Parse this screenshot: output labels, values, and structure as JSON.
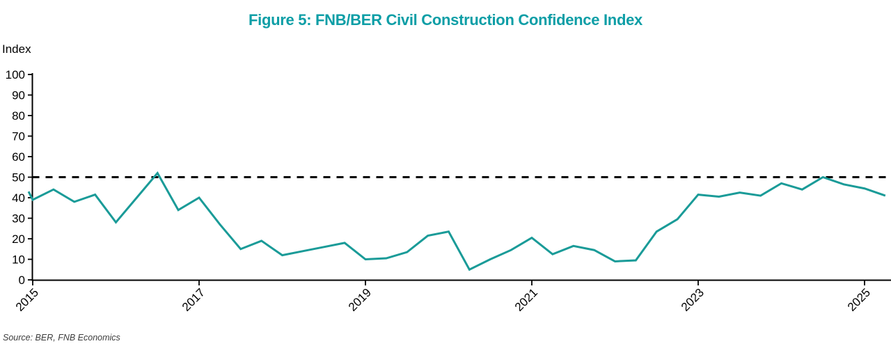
{
  "title": {
    "text": "Figure 5: FNB/BER Civil Construction Confidence Index"
  },
  "y_axis_unit_label": "Index",
  "source_note": "Source: BER, FNB Economics",
  "colors": {
    "title": "#0d9ea6",
    "series_line": "#1a9b98",
    "reference_line": "#000000",
    "axis": "#000000",
    "source_text": "#3d3d3d"
  },
  "chart_data": {
    "type": "line",
    "title": "Figure 5: FNB/BER Civil Construction Confidence Index",
    "ylabel": "Index",
    "ylim": [
      0,
      100
    ],
    "y_ticks": [
      0,
      10,
      20,
      30,
      40,
      50,
      60,
      70,
      80,
      90,
      100
    ],
    "x_tick_labels": [
      "2015",
      "2017",
      "2019",
      "2021",
      "2023",
      "2025"
    ],
    "x_tick_every_n_points": 8,
    "grid": "off",
    "legend": "none",
    "reference_line_y": 50,
    "lead_in_edge_value": 43,
    "x": [
      "2015Q1",
      "2015Q2",
      "2015Q3",
      "2015Q4",
      "2016Q1",
      "2016Q2",
      "2016Q3",
      "2016Q4",
      "2017Q1",
      "2017Q2",
      "2017Q3",
      "2017Q4",
      "2018Q1",
      "2018Q2",
      "2018Q3",
      "2018Q4",
      "2019Q1",
      "2019Q2",
      "2019Q3",
      "2019Q4",
      "2020Q1",
      "2020Q2",
      "2020Q3",
      "2020Q4",
      "2021Q1",
      "2021Q2",
      "2021Q3",
      "2021Q4",
      "2022Q1",
      "2022Q2",
      "2022Q3",
      "2022Q4",
      "2023Q1",
      "2023Q2",
      "2023Q3",
      "2023Q4",
      "2024Q1",
      "2024Q2",
      "2024Q3",
      "2024Q4",
      "2025Q1",
      "2025Q2"
    ],
    "values": [
      39,
      44,
      38,
      41.5,
      28,
      40,
      52,
      34,
      40,
      27,
      15,
      19,
      12,
      14,
      16,
      18,
      10,
      10.5,
      13.5,
      21.5,
      23.5,
      5,
      10,
      14.5,
      20.5,
      12.5,
      16.5,
      14.5,
      9,
      9.5,
      23.5,
      29.5,
      41.5,
      40.5,
      42.5,
      41,
      47,
      44,
      50,
      46.5,
      44.5,
      41
    ],
    "source": "Source: BER, FNB Economics"
  }
}
